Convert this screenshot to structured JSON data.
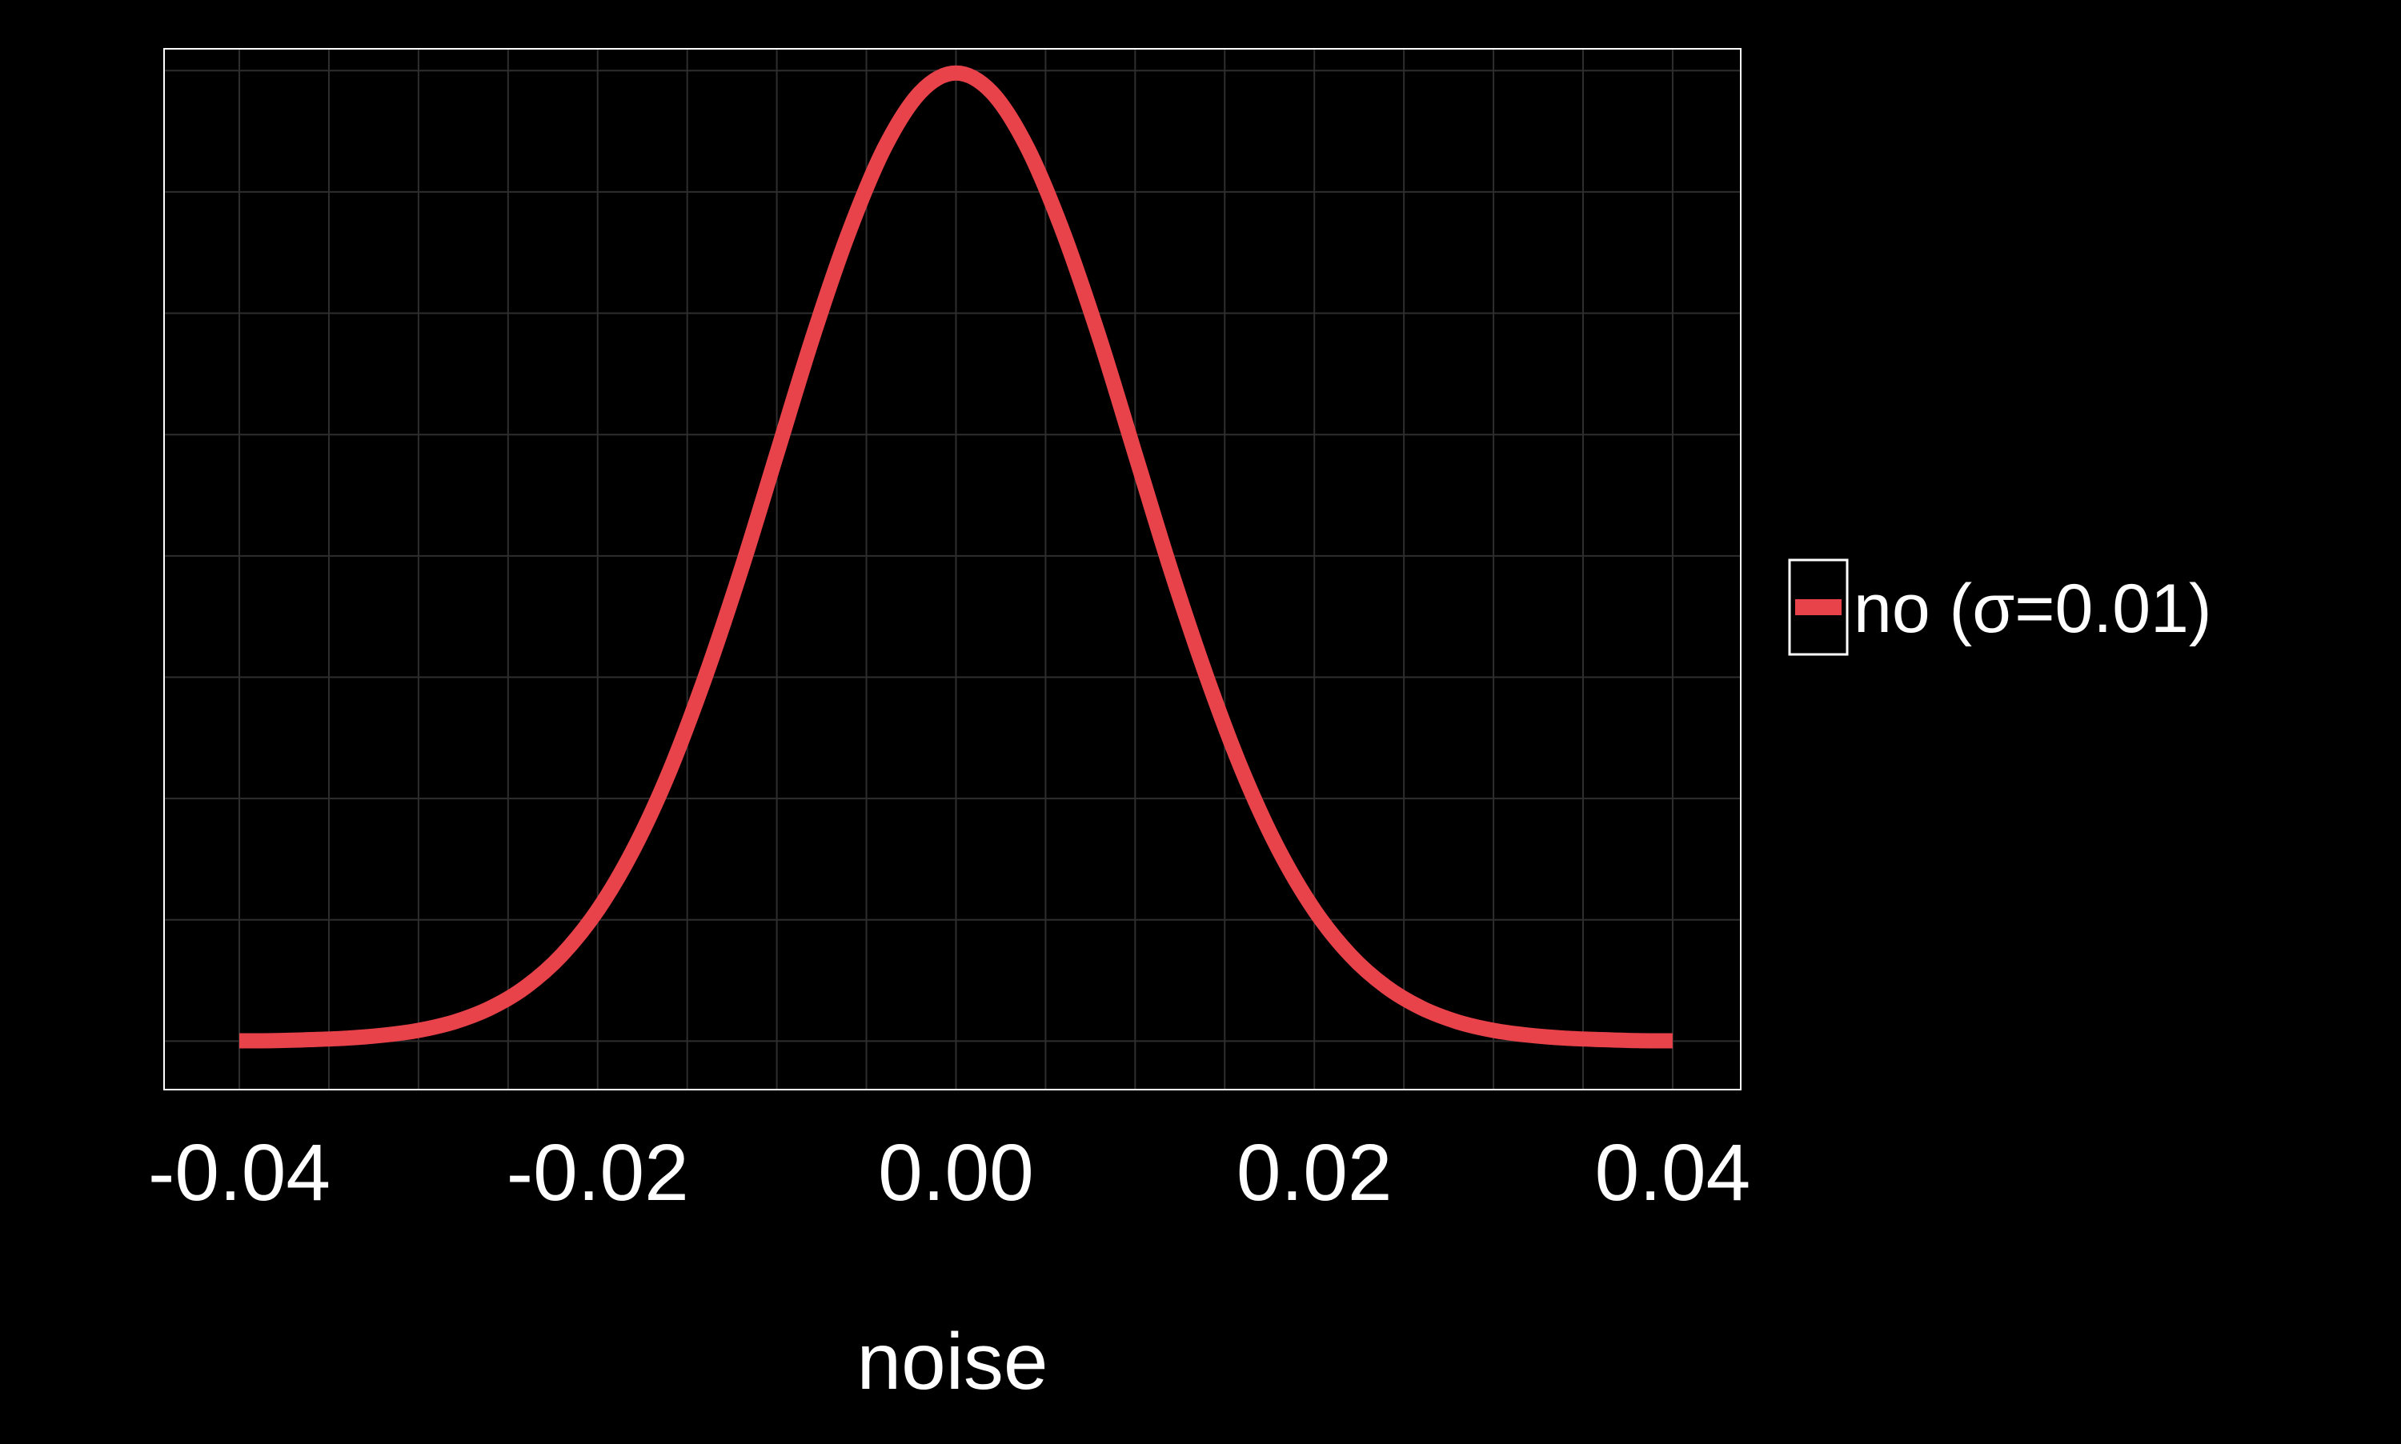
{
  "chart_data": {
    "type": "line",
    "title": "",
    "xlabel": "noise",
    "ylabel": "",
    "xlim": [
      -0.0442,
      0.0438
    ],
    "ylim": [
      -2.0,
      40.9
    ],
    "x_ticks": [
      -0.04,
      -0.02,
      0.0,
      0.02,
      0.04
    ],
    "x_tick_labels": [
      "-0.04",
      "-0.02",
      "0.00",
      "0.02",
      "0.04"
    ],
    "grid": true,
    "legend_position": "right",
    "series": [
      {
        "name": "no (σ=0.01)",
        "color": "#e8424a",
        "x": [
          -0.04,
          -0.038,
          -0.036,
          -0.034,
          -0.032,
          -0.03,
          -0.028,
          -0.026,
          -0.024,
          -0.022,
          -0.02,
          -0.018,
          -0.016,
          -0.014,
          -0.012,
          -0.01,
          -0.008,
          -0.006,
          -0.004,
          -0.002,
          0.0,
          0.002,
          0.004,
          0.006,
          0.008,
          0.01,
          0.012,
          0.014,
          0.016,
          0.018,
          0.02,
          0.022,
          0.024,
          0.026,
          0.028,
          0.03,
          0.032,
          0.034,
          0.036,
          0.038,
          0.04
        ],
        "y": [
          0.01,
          0.02,
          0.06,
          0.12,
          0.24,
          0.44,
          0.79,
          1.36,
          2.24,
          3.55,
          5.4,
          7.9,
          11.1,
          15.0,
          19.4,
          24.2,
          29.0,
          33.3,
          36.8,
          39.1,
          39.9,
          39.1,
          36.8,
          33.3,
          29.0,
          24.2,
          19.4,
          15.0,
          11.1,
          7.9,
          5.4,
          3.55,
          2.24,
          1.36,
          0.79,
          0.44,
          0.24,
          0.12,
          0.06,
          0.02,
          0.01
        ]
      }
    ]
  }
}
